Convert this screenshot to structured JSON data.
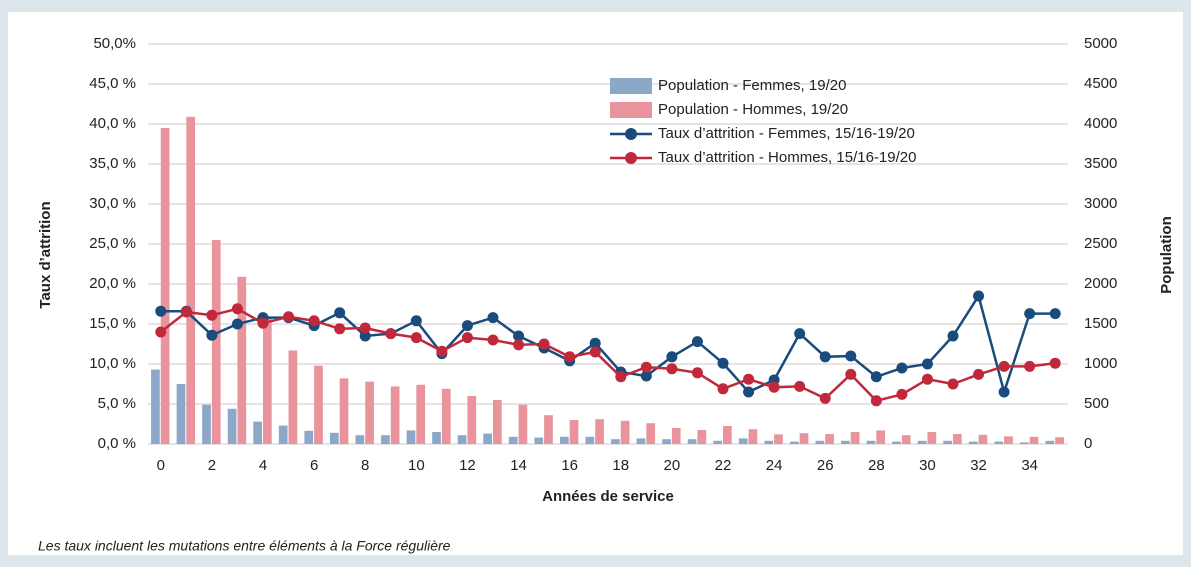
{
  "chart_data": {
    "type": "combo",
    "xlabel": "Années de service",
    "ylabel": "Taux d’attrition",
    "y2label": "Population",
    "note": "Les taux incluent les mutations entre éléments à la Force régulière",
    "categories": [
      "0",
      null,
      "2",
      null,
      "4",
      null,
      "6",
      null,
      "8",
      null,
      "10",
      null,
      "12",
      null,
      "14",
      null,
      "16",
      null,
      "18",
      null,
      "20",
      null,
      "22",
      null,
      "24",
      null,
      "26",
      null,
      "28",
      null,
      "30",
      null,
      "32",
      null,
      "34",
      null
    ],
    "ylim": [
      0,
      50
    ],
    "yticks": [
      {
        "value": 0,
        "label": "0,0 %"
      },
      {
        "value": 5,
        "label": "5,0 %"
      },
      {
        "value": 10,
        "label": "10,0 %"
      },
      {
        "value": 15,
        "label": "15,0 %"
      },
      {
        "value": 20,
        "label": "20,0 %"
      },
      {
        "value": 25,
        "label": "25,0 %"
      },
      {
        "value": 30,
        "label": "30,0 %"
      },
      {
        "value": 35,
        "label": "35,0 %"
      },
      {
        "value": 40,
        "label": "40,0 %"
      },
      {
        "value": 45,
        "label": "45,0 %"
      },
      {
        "value": 50,
        "label": "50,0%"
      }
    ],
    "y2lim": [
      0,
      5000
    ],
    "y2ticks": [
      0,
      500,
      1000,
      1500,
      2000,
      2500,
      3000,
      3500,
      4000,
      4500,
      5000
    ],
    "grid": true,
    "legend": "top",
    "series": [
      {
        "name": "Population - Femmes, 19/20",
        "type": "bar",
        "axis": "y2",
        "color": "#8ca8c9",
        "values": [
          930,
          750,
          490,
          440,
          280,
          230,
          165,
          140,
          110,
          110,
          170,
          150,
          110,
          130,
          90,
          80,
          90,
          90,
          60,
          70,
          60,
          60,
          40,
          70,
          40,
          30,
          40,
          40,
          40,
          30,
          40,
          40,
          30,
          30,
          20,
          40
        ]
      },
      {
        "name": "Population - Hommes, 19/20",
        "type": "bar",
        "axis": "y2",
        "color": "#e9949c",
        "values": [
          3950,
          4090,
          2550,
          2090,
          1570,
          1170,
          980,
          820,
          780,
          720,
          740,
          690,
          600,
          550,
          490,
          360,
          300,
          310,
          290,
          260,
          200,
          175,
          225,
          185,
          120,
          135,
          125,
          150,
          170,
          110,
          150,
          125,
          115,
          95,
          90,
          85
        ]
      },
      {
        "name": "Taux d’attrition - Femmes, 15/16-19/20",
        "type": "line",
        "color": "#194b7c",
        "values": [
          16.6,
          16.6,
          13.6,
          15.0,
          15.8,
          15.8,
          14.8,
          16.4,
          13.5,
          13.8,
          15.4,
          11.3,
          14.8,
          15.8,
          13.5,
          12.0,
          10.4,
          12.6,
          9.0,
          8.5,
          10.9,
          12.8,
          10.1,
          6.5,
          8.0,
          13.8,
          10.9,
          11.0,
          8.4,
          9.5,
          10.0,
          13.5,
          18.5,
          6.5,
          16.3,
          16.3
        ]
      },
      {
        "name": "Taux d’attrition - Hommes, 15/16-19/20",
        "type": "line",
        "color": "#c1283c",
        "values": [
          14.0,
          16.5,
          16.1,
          16.9,
          15.1,
          15.9,
          15.4,
          14.4,
          14.5,
          13.8,
          13.3,
          11.6,
          13.3,
          13.0,
          12.4,
          12.5,
          10.9,
          11.5,
          8.4,
          9.6,
          9.4,
          8.9,
          6.9,
          8.1,
          7.1,
          7.2,
          5.7,
          8.7,
          5.4,
          6.2,
          8.1,
          7.5,
          8.7,
          9.7,
          9.7,
          10.1
        ]
      }
    ]
  }
}
